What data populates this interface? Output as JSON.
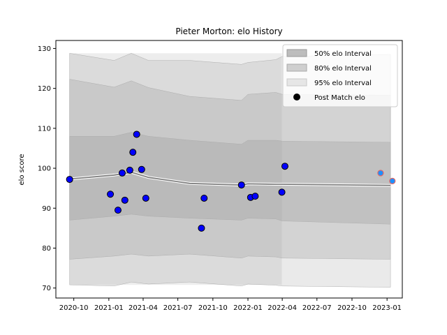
{
  "chart_data": {
    "type": "line",
    "title": "Pieter Morton: elo History",
    "xlabel": "",
    "ylabel": "elo score",
    "xlim": [
      "2020-08-15",
      "2023-02-10"
    ],
    "ylim": [
      67.5,
      132
    ],
    "x_ticks": [
      "2020-10",
      "2021-01",
      "2021-04",
      "2021-07",
      "2021-10",
      "2022-01",
      "2022-04",
      "2022-07",
      "2022-10",
      "2023-01"
    ],
    "y_ticks": [
      70,
      80,
      90,
      100,
      110,
      120,
      130
    ],
    "legend_position": "top-right",
    "colors": {
      "band50": "#bdbdbd",
      "band80": "#cfcfcf",
      "band95": "#e6e6e6",
      "mean_line": "#808080",
      "marker_fill": "#0000ff",
      "marker_edge": "#000000",
      "future_marker_fill": "#1e90ff",
      "future_marker_edge": "#e06666"
    },
    "legend": [
      "50% elo Interval",
      "80% elo Interval",
      "95% elo Interval",
      "Post Match elo"
    ],
    "bands": {
      "dates": [
        "2020-09-20",
        "2021-01-15",
        "2021-03-01",
        "2021-04-15",
        "2021-08-01",
        "2021-12-15",
        "2022-01-01",
        "2022-03-15",
        "2022-04-01",
        "2023-01-10"
      ],
      "mean": [
        97.3,
        98.3,
        99.0,
        97.7,
        96.2,
        95.8,
        96.1,
        96.0,
        96.0,
        95.7
      ],
      "p50_low": [
        87.0,
        88.0,
        88.5,
        88.0,
        87.5,
        87.0,
        87.5,
        87.3,
        86.8,
        86.0
      ],
      "p50_high": [
        108.0,
        108.0,
        109.0,
        108.0,
        107.0,
        106.0,
        107.0,
        107.0,
        106.8,
        106.5
      ],
      "p80_low": [
        77.2,
        78.0,
        78.5,
        78.0,
        78.5,
        77.5,
        78.0,
        77.8,
        77.5,
        77.2
      ],
      "p80_high": [
        122.3,
        120.3,
        121.9,
        120.2,
        118.0,
        117.0,
        118.5,
        119.0,
        118.5,
        118.3
      ],
      "p95_low": [
        70.8,
        70.5,
        71.5,
        71.0,
        71.5,
        70.5,
        71.0,
        70.7,
        70.5,
        70.2
      ],
      "p95_high": [
        128.8,
        127.0,
        128.8,
        127.0,
        127.0,
        126.0,
        126.5,
        127.2,
        128.0,
        128.5
      ],
      "shaded_until": "2022-03-31"
    },
    "series": [
      {
        "name": "Post Match elo",
        "points": [
          {
            "x": "2020-09-20",
            "y": 97.2
          },
          {
            "x": "2021-01-05",
            "y": 93.5
          },
          {
            "x": "2021-01-25",
            "y": 89.5
          },
          {
            "x": "2021-02-05",
            "y": 98.8
          },
          {
            "x": "2021-02-12",
            "y": 92.0
          },
          {
            "x": "2021-02-25",
            "y": 99.5
          },
          {
            "x": "2021-03-05",
            "y": 104.0
          },
          {
            "x": "2021-03-15",
            "y": 108.5
          },
          {
            "x": "2021-03-28",
            "y": 99.7
          },
          {
            "x": "2021-04-08",
            "y": 92.5
          },
          {
            "x": "2021-09-01",
            "y": 85.0
          },
          {
            "x": "2021-09-08",
            "y": 92.5
          },
          {
            "x": "2021-12-15",
            "y": 95.8
          },
          {
            "x": "2022-01-08",
            "y": 92.7
          },
          {
            "x": "2022-01-20",
            "y": 93.0
          },
          {
            "x": "2022-03-31",
            "y": 94.0
          },
          {
            "x": "2022-04-08",
            "y": 100.5
          }
        ]
      },
      {
        "name": "",
        "points": [
          {
            "x": "2022-12-15",
            "y": 98.8
          },
          {
            "x": "2023-01-15",
            "y": 96.8
          }
        ]
      }
    ]
  }
}
